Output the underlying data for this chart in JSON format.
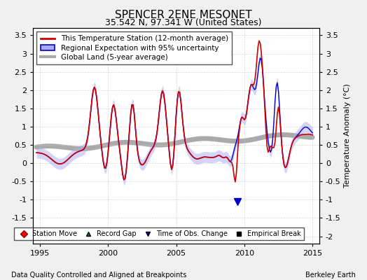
{
  "title": "SPENCER 2ENE MESONET",
  "subtitle": "35.542 N, 97.341 W (United States)",
  "ylabel": "Temperature Anomaly (°C)",
  "footer_left": "Data Quality Controlled and Aligned at Breakpoints",
  "footer_right": "Berkeley Earth",
  "xlim": [
    1994.5,
    2015.5
  ],
  "ylim": [
    -2.2,
    3.7
  ],
  "yticks": [
    -2,
    -1.5,
    -1,
    -0.5,
    0,
    0.5,
    1,
    1.5,
    2,
    2.5,
    3,
    3.5
  ],
  "xticks": [
    1995,
    2000,
    2005,
    2010,
    2015
  ],
  "background_color": "#f0f0f0",
  "plot_bg_color": "#ffffff",
  "line_red": "#cc0000",
  "line_blue": "#0000cc",
  "line_gray": "#aaaaaa",
  "fill_blue_color": "#aaaaee",
  "marker_time_obs_x": 2009.5,
  "marker_time_obs_y": -1.05,
  "title_fontsize": 11,
  "subtitle_fontsize": 9,
  "tick_fontsize": 8,
  "legend_fontsize": 7.5,
  "footer_fontsize": 7
}
